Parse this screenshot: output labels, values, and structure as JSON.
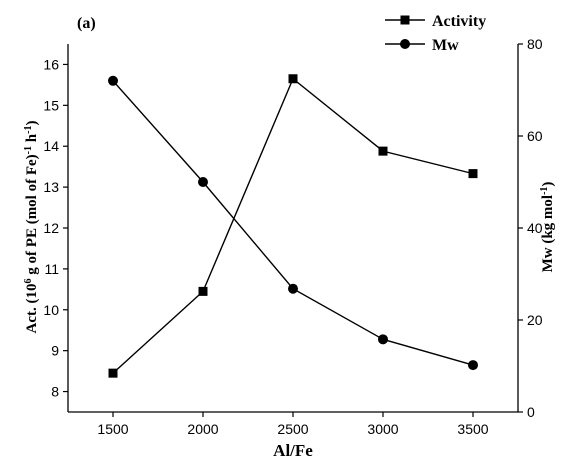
{
  "panel_label": "(a)",
  "chart_data": {
    "type": "line",
    "x": [
      1500,
      2000,
      2500,
      3000,
      3500
    ],
    "xlabel": "Al/Fe",
    "x_ticks": [
      1500,
      2000,
      2500,
      3000,
      3500
    ],
    "xlim": [
      1250,
      3750
    ],
    "left_axis": {
      "label_parts": [
        "Act. (10",
        "6",
        " g of PE (mol of Fe)",
        "-1",
        " h",
        "-1",
        ")"
      ],
      "ylim": [
        7.5,
        16.5
      ],
      "ticks": [
        8,
        9,
        10,
        11,
        12,
        13,
        14,
        15,
        16
      ]
    },
    "right_axis": {
      "label_parts": [
        "Mw (kg mol",
        "-1",
        ")"
      ],
      "ylim": [
        0,
        80
      ],
      "ticks": [
        0,
        20,
        40,
        60,
        80
      ]
    },
    "series": [
      {
        "name": "Activity",
        "axis": "left",
        "marker": "square",
        "values": [
          8.45,
          10.45,
          15.65,
          13.88,
          13.33
        ]
      },
      {
        "name": "Mw",
        "axis": "right",
        "marker": "circle",
        "values": [
          72.0,
          50.0,
          26.8,
          15.8,
          10.2
        ]
      }
    ],
    "legend_position": "top-right",
    "grid": false
  }
}
